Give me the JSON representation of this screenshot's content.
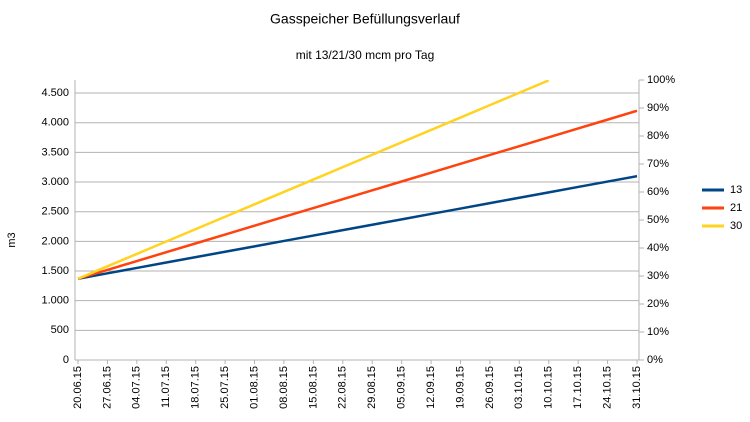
{
  "chart_data": {
    "type": "line",
    "title": "Gasspeicher Befüllungsverlauf",
    "subtitle": "mit 13/21/30 mcm pro Tag",
    "y_label": "m3",
    "categories": [
      "20.06.15",
      "27.06.15",
      "04.07.15",
      "11.07.15",
      "18.07.15",
      "25.07.15",
      "01.08.15",
      "08.08.15",
      "15.08.15",
      "22.08.15",
      "29.08.15",
      "05.09.15",
      "12.09.15",
      "19.09.15",
      "26.09.15",
      "03.10.15",
      "10.10.15",
      "17.10.15",
      "24.10.15",
      "31.10.15"
    ],
    "series": [
      {
        "name": "13",
        "color": "#004586",
        "values": [
          1370,
          1461,
          1552,
          1643,
          1734,
          1825,
          1916,
          2007,
          2098,
          2189,
          2280,
          2371,
          2462,
          2553,
          2644,
          2735,
          2826,
          2917,
          3008,
          3099
        ]
      },
      {
        "name": "21",
        "color": "#ff420e",
        "values": [
          1370,
          1519,
          1668,
          1817,
          1966,
          2115,
          2264,
          2413,
          2562,
          2711,
          2860,
          3009,
          3158,
          3307,
          3456,
          3605,
          3754,
          3903,
          4052,
          4201
        ]
      },
      {
        "name": "30",
        "color": "#ffd320",
        "values": [
          1370,
          1579,
          1788,
          1997,
          2206,
          2415,
          2624,
          2833,
          3042,
          3251,
          3460,
          3669,
          3878,
          4087,
          4296,
          4505,
          4714,
          null,
          null,
          null
        ]
      }
    ],
    "ylim": [
      0,
      4720
    ],
    "yticks": [
      0,
      500,
      {
        "value": 1000,
        "label": "1.000"
      },
      {
        "value": 1500,
        "label": "1.500"
      },
      {
        "value": 2000,
        "label": "2.000"
      },
      {
        "value": 2500,
        "label": "2.500"
      },
      {
        "value": 3000,
        "label": "3.000"
      },
      {
        "value": 3500,
        "label": "3.500"
      },
      {
        "value": 4000,
        "label": "4.000"
      },
      {
        "value": 4500,
        "label": "4.500"
      }
    ],
    "y2lim": [
      0,
      100
    ],
    "y2ticks": [
      {
        "value": 0,
        "label": "0%"
      },
      {
        "value": 10,
        "label": "10%"
      },
      {
        "value": 20,
        "label": "20%"
      },
      {
        "value": 30,
        "label": "30%"
      },
      {
        "value": 40,
        "label": "40%"
      },
      {
        "value": 50,
        "label": "50%"
      },
      {
        "value": 60,
        "label": "60%"
      },
      {
        "value": 70,
        "label": "70%"
      },
      {
        "value": 80,
        "label": "80%"
      },
      {
        "value": 90,
        "label": "90%"
      },
      {
        "value": 100,
        "label": "100%"
      }
    ],
    "grid": true,
    "legend": "right"
  }
}
